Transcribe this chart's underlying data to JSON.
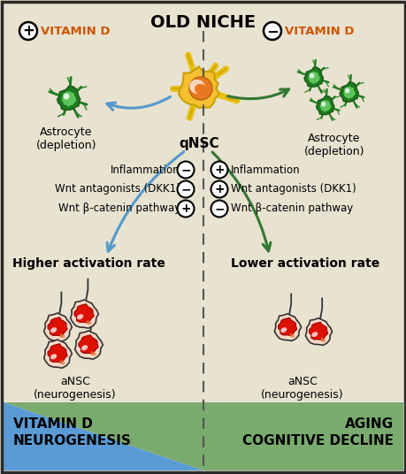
{
  "bg_color": "#e8e2d0",
  "border_color": "#2a2a2a",
  "title_text": "OLD NICHE",
  "title_fontsize": 14,
  "left_title_color": "#cc5500",
  "right_title_color": "#cc5500",
  "dashed_line_color": "#555555",
  "left_arrow_color": "#5599cc",
  "right_arrow_color": "#337733",
  "left_factors": [
    "Inflammation",
    "Wnt antagonists (DKK1)",
    "Wnt β-catenin pathway"
  ],
  "left_signs": [
    "−",
    "−",
    "+"
  ],
  "right_factors": [
    "Inflammation",
    "Wnt antagonists (DKK1)",
    "Wnt β-catenin pathway"
  ],
  "right_signs": [
    "+",
    "+",
    "−"
  ],
  "left_activation": "Higher activation rate",
  "right_activation": "Lower activation rate",
  "left_ansc": "aNSC\n(neurogenesis)",
  "right_ansc": "aNSC\n(neurogenesis)",
  "left_astrocyte": "Astrocyte\n(depletion)",
  "right_astrocyte": "Astrocyte\n(depletion)",
  "qnsc_label": "qNSC",
  "bottom_left_text": "VITAMIN D\nNEUROGENESIS",
  "bottom_right_text": "AGING\nCOGNITIVE DECLINE",
  "blue_color": "#5b9bd5",
  "green_color": "#7aab6e",
  "astrocyte_dark": "#1e7a1e",
  "astrocyte_light": "#5dc45d",
  "qnsc_yellow": "#f5c030",
  "qnsc_orange": "#e87820",
  "ansc_body": "#f5d8c8",
  "ansc_nucleus_red": "#dd1100",
  "figsize": [
    4.6,
    5.36
  ],
  "dpi": 100
}
